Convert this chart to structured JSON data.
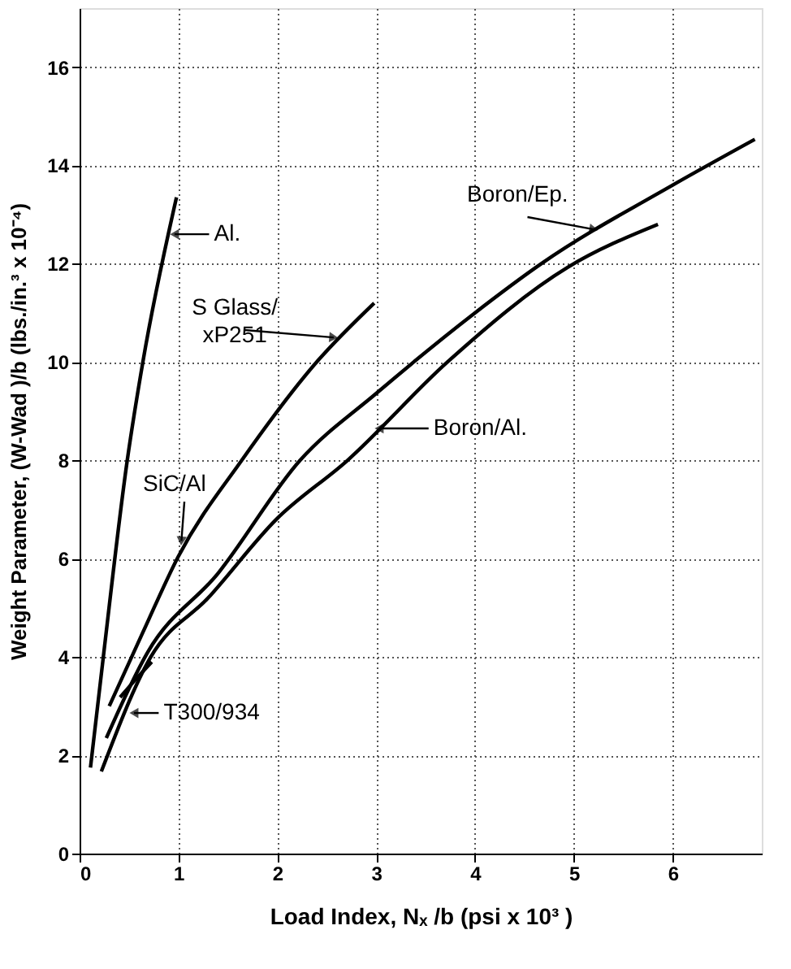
{
  "chart_data": {
    "type": "line",
    "xlabel": "Load Index,   Nₓ /b (psi x 10³ )",
    "ylabel": "Weight Parameter,   (W-Wad )/b  (lbs./in.³ x 10⁻⁴)",
    "series": [
      {
        "color": "#000000",
        "x": [
          0.11,
          0.24,
          0.48,
          0.64,
          0.98
        ],
        "values": [
          1.75,
          4.0,
          7.97,
          10.0,
          13.35
        ]
      },
      {
        "color": "#000000",
        "x": [
          0.3,
          0.64,
          1.0,
          1.64,
          2.42,
          2.98
        ],
        "values": [
          3.0,
          4.5,
          6.05,
          8.0,
          10.05,
          11.2
        ]
      },
      {
        "color": "#000000",
        "x": [
          0.27,
          0.69,
          1.4,
          2.23,
          3.0,
          3.98,
          4.67,
          6.0,
          6.83
        ],
        "values": [
          2.35,
          4.1,
          5.7,
          8.0,
          9.36,
          10.97,
          12.0,
          13.6,
          14.53
        ]
      },
      {
        "color": "#000000",
        "x": [
          0.22,
          0.72,
          1.3,
          1.99,
          2.71,
          3.72,
          4.94,
          5.85
        ],
        "values": [
          1.67,
          4.0,
          5.2,
          6.8,
          8.0,
          10.0,
          11.93,
          12.8
        ]
      },
      {
        "color": "#000000",
        "x": [
          0.41,
          0.57,
          0.73
        ],
        "values": [
          3.18,
          3.55,
          3.9
        ]
      }
    ],
    "annotations": [
      {
        "text": "Al.",
        "x": 0.96,
        "y": 12.6
      },
      {
        "text": "S Glass/\nxP251",
        "x": 2.57,
        "y": 10.5
      },
      {
        "text": "Boron/Ep.",
        "x": 5.2,
        "y": 12.7
      },
      {
        "text": "Boron/Al.",
        "x": 3.03,
        "y": 8.65
      },
      {
        "text": "SiC/Al",
        "x": 1.03,
        "y": 6.36
      },
      {
        "text": "T300/934",
        "x": 0.55,
        "y": 2.86
      }
    ],
    "xlim": [
      0,
      6.9
    ],
    "ylim": [
      0,
      17.2
    ],
    "xticks": [
      0,
      1,
      2,
      3,
      4,
      5,
      6
    ],
    "yticks": [
      0,
      2,
      4,
      6,
      8,
      10,
      12,
      14,
      16
    ],
    "grid": true,
    "line_style": "solid",
    "marker": "none"
  }
}
